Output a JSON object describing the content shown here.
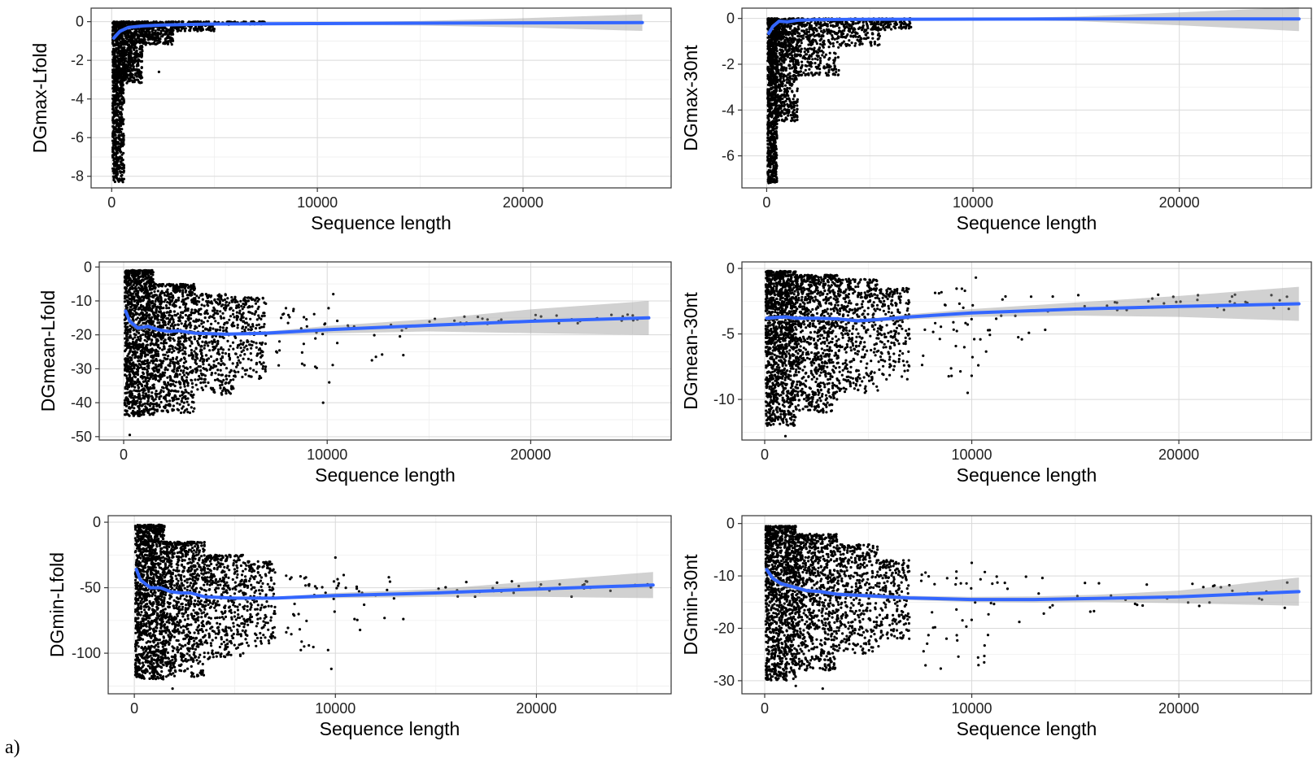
{
  "figure": {
    "panel_label": "a)"
  },
  "chart_data": [
    {
      "type": "scatter",
      "ylabel": "DGmax-Lfold",
      "xlabel": "Sequence length",
      "xlim": [
        -1000,
        27200
      ],
      "ylim": [
        -8.6,
        0.7
      ],
      "xticks": [
        0,
        10000,
        20000
      ],
      "xtick_labels": [
        "0",
        "10000",
        "20000"
      ],
      "yticks": [
        0,
        -2,
        -4,
        -6,
        -8
      ],
      "ytick_labels": [
        "0",
        "-2",
        "-4",
        "-6",
        "-8"
      ],
      "grid": true,
      "series": [
        {
          "kind": "points",
          "color": "#000000",
          "cloud": [
            {
              "x0": 50,
              "x1": 600,
              "top": 0.0,
              "bottom": -8.3,
              "n": 900
            },
            {
              "x0": 600,
              "x1": 1500,
              "top": 0.0,
              "bottom": -3.2,
              "n": 500
            },
            {
              "x0": 1500,
              "x1": 3000,
              "top": 0.0,
              "bottom": -1.2,
              "n": 300
            },
            {
              "x0": 3000,
              "x1": 5000,
              "top": 0.0,
              "bottom": -0.5,
              "n": 150
            },
            {
              "x0": 5000,
              "x1": 7500,
              "top": 0.0,
              "bottom": -0.15,
              "n": 60
            }
          ],
          "outliers": [
            [
              2300,
              -2.6
            ],
            [
              8800,
              -0.1
            ],
            [
              25800,
              -0.05
            ]
          ]
        },
        {
          "kind": "smooth",
          "color": "#3366ff",
          "x": [
            100,
            400,
            800,
            1500,
            2500,
            5000,
            10000,
            15000,
            20000,
            25800
          ],
          "y": [
            -0.85,
            -0.5,
            -0.3,
            -0.22,
            -0.17,
            -0.12,
            -0.1,
            -0.08,
            -0.06,
            -0.05
          ],
          "ci_low": [
            -1.0,
            -0.6,
            -0.35,
            -0.25,
            -0.2,
            -0.16,
            -0.15,
            -0.2,
            -0.3,
            -0.48
          ],
          "ci_high": [
            -0.7,
            -0.4,
            -0.25,
            -0.19,
            -0.14,
            -0.08,
            -0.05,
            0.04,
            0.18,
            0.38
          ]
        }
      ]
    },
    {
      "type": "scatter",
      "ylabel": "DGmax-30nt",
      "xlabel": "Sequence length",
      "xlim": [
        -1200,
        26400
      ],
      "ylim": [
        -7.4,
        0.45
      ],
      "xticks": [
        0,
        10000,
        20000
      ],
      "xtick_labels": [
        "0",
        "10000",
        "20000"
      ],
      "yticks": [
        0,
        -2,
        -4,
        -6
      ],
      "ytick_labels": [
        "0",
        "-2",
        "-4",
        "-6"
      ],
      "grid": true,
      "series": [
        {
          "kind": "points",
          "color": "#000000",
          "cloud": [
            {
              "x0": 50,
              "x1": 500,
              "top": 0.0,
              "bottom": -7.2,
              "n": 900
            },
            {
              "x0": 500,
              "x1": 1500,
              "top": 0.0,
              "bottom": -4.5,
              "n": 600
            },
            {
              "x0": 1500,
              "x1": 3500,
              "top": 0.0,
              "bottom": -2.5,
              "n": 400
            },
            {
              "x0": 3500,
              "x1": 5500,
              "top": 0.0,
              "bottom": -1.2,
              "n": 200
            },
            {
              "x0": 5500,
              "x1": 7000,
              "top": 0.0,
              "bottom": -0.5,
              "n": 80
            }
          ],
          "outliers": [
            [
              3100,
              -2.1
            ],
            [
              25800,
              -0.02
            ]
          ]
        },
        {
          "kind": "smooth",
          "color": "#3366ff",
          "x": [
            100,
            300,
            600,
            1000,
            1500,
            2500,
            5000,
            10000,
            15000,
            20000,
            25800
          ],
          "y": [
            -0.65,
            -0.35,
            -0.12,
            -0.15,
            -0.08,
            -0.05,
            -0.04,
            -0.03,
            -0.02,
            -0.02,
            -0.02
          ],
          "ci_low": [
            -0.8,
            -0.45,
            -0.2,
            -0.2,
            -0.12,
            -0.08,
            -0.07,
            -0.06,
            -0.12,
            -0.3,
            -0.55
          ],
          "ci_high": [
            -0.5,
            -0.25,
            -0.05,
            -0.1,
            -0.04,
            -0.02,
            -0.01,
            0.0,
            0.08,
            0.26,
            0.5
          ]
        }
      ]
    },
    {
      "type": "scatter",
      "ylabel": "DGmean-Lfold",
      "xlabel": "Sequence length",
      "xlim": [
        -1200,
        26900
      ],
      "ylim": [
        -51,
        1.5
      ],
      "xticks": [
        0,
        10000,
        20000
      ],
      "xtick_labels": [
        "0",
        "10000",
        "20000"
      ],
      "yticks": [
        0,
        -10,
        -20,
        -30,
        -40,
        -50
      ],
      "ytick_labels": [
        "0",
        "-10",
        "-20",
        "-30",
        "-40",
        "-50"
      ],
      "grid": true,
      "series": [
        {
          "kind": "points",
          "color": "#000000",
          "cloud": [
            {
              "x0": 50,
              "x1": 1500,
              "top": -1.0,
              "bottom": -44,
              "n": 1200
            },
            {
              "x0": 1500,
              "x1": 3500,
              "top": -5.0,
              "bottom": -43,
              "n": 800
            },
            {
              "x0": 3500,
              "x1": 5500,
              "top": -8.0,
              "bottom": -38,
              "n": 400
            },
            {
              "x0": 5500,
              "x1": 7000,
              "top": -9.0,
              "bottom": -33,
              "n": 200
            },
            {
              "x0": 7500,
              "x1": 10500,
              "top": -12.0,
              "bottom": -30,
              "n": 35
            },
            {
              "x0": 11000,
              "x1": 14000,
              "top": -13.0,
              "bottom": -29,
              "n": 12
            },
            {
              "x0": 15000,
              "x1": 25800,
              "top": -14.0,
              "bottom": -17,
              "n": 30
            }
          ],
          "outliers": [
            [
              300,
              -49.5
            ],
            [
              9800,
              -40
            ],
            [
              10300,
              -8
            ],
            [
              10100,
              -34
            ]
          ]
        },
        {
          "kind": "smooth",
          "color": "#3366ff",
          "x": [
            100,
            300,
            700,
            1200,
            1700,
            2200,
            2700,
            3500,
            5000,
            7000,
            10000,
            15000,
            20000,
            25800
          ],
          "y": [
            -13,
            -16,
            -18,
            -17.5,
            -18.5,
            -19,
            -18.8,
            -19.5,
            -19.8,
            -19.5,
            -18.5,
            -17.2,
            -16,
            -15
          ],
          "ci_low": [
            -14,
            -17,
            -18.8,
            -18.2,
            -19,
            -19.5,
            -19.3,
            -20,
            -20.3,
            -20,
            -19.6,
            -19,
            -19.5,
            -20
          ],
          "ci_high": [
            -12,
            -15,
            -17.2,
            -16.8,
            -18,
            -18.5,
            -18.3,
            -19,
            -19.3,
            -19,
            -17.4,
            -15.4,
            -12.5,
            -10
          ]
        }
      ]
    },
    {
      "type": "scatter",
      "ylabel": "DGmean-30nt",
      "xlabel": "Sequence length",
      "xlim": [
        -1100,
        26400
      ],
      "ylim": [
        -13.1,
        0.5
      ],
      "xticks": [
        0,
        10000,
        20000
      ],
      "xtick_labels": [
        "0",
        "10000",
        "20000"
      ],
      "yticks": [
        0,
        -5,
        -10
      ],
      "ytick_labels": [
        "0",
        "-5",
        "-10"
      ],
      "grid": true,
      "series": [
        {
          "kind": "points",
          "color": "#000000",
          "cloud": [
            {
              "x0": 50,
              "x1": 1500,
              "top": -0.2,
              "bottom": -12.0,
              "n": 1200
            },
            {
              "x0": 1500,
              "x1": 3500,
              "top": -0.5,
              "bottom": -11.0,
              "n": 800
            },
            {
              "x0": 3500,
              "x1": 5500,
              "top": -0.8,
              "bottom": -9.5,
              "n": 400
            },
            {
              "x0": 5500,
              "x1": 7000,
              "top": -1.5,
              "bottom": -8.5,
              "n": 200
            },
            {
              "x0": 7500,
              "x1": 11000,
              "top": -1.5,
              "bottom": -8.5,
              "n": 40
            },
            {
              "x0": 11000,
              "x1": 14000,
              "top": -2.0,
              "bottom": -6.5,
              "n": 12
            },
            {
              "x0": 15000,
              "x1": 25800,
              "top": -2.0,
              "bottom": -3.2,
              "n": 30
            }
          ],
          "outliers": [
            [
              1000,
              -12.8
            ],
            [
              10200,
              -0.7
            ],
            [
              9800,
              -9.5
            ]
          ]
        },
        {
          "kind": "smooth",
          "color": "#3366ff",
          "x": [
            100,
            500,
            1000,
            1500,
            2500,
            3500,
            4500,
            5500,
            7000,
            10000,
            15000,
            20000,
            25800
          ],
          "y": [
            -3.8,
            -3.75,
            -3.7,
            -3.8,
            -3.8,
            -3.85,
            -4.0,
            -3.9,
            -3.7,
            -3.4,
            -3.1,
            -2.9,
            -2.7
          ],
          "ci_low": [
            -4.0,
            -3.9,
            -3.85,
            -3.95,
            -3.95,
            -4.0,
            -4.15,
            -4.05,
            -3.9,
            -3.7,
            -3.6,
            -3.7,
            -4.0
          ],
          "ci_high": [
            -3.6,
            -3.6,
            -3.55,
            -3.65,
            -3.65,
            -3.7,
            -3.85,
            -3.75,
            -3.5,
            -3.1,
            -2.6,
            -2.1,
            -1.4
          ]
        }
      ]
    },
    {
      "type": "scatter",
      "ylabel": "DGmin-Lfold",
      "xlabel": "Sequence length",
      "xlim": [
        -1300,
        26700
      ],
      "ylim": [
        -131,
        5
      ],
      "xticks": [
        0,
        10000,
        20000
      ],
      "xtick_labels": [
        "0",
        "10000",
        "20000"
      ],
      "yticks": [
        0,
        -50,
        -100
      ],
      "ytick_labels": [
        "0",
        "-50",
        "-100"
      ],
      "grid": true,
      "series": [
        {
          "kind": "points",
          "color": "#000000",
          "cloud": [
            {
              "x0": 50,
              "x1": 1500,
              "top": -2,
              "bottom": -120,
              "n": 1200
            },
            {
              "x0": 1500,
              "x1": 3500,
              "top": -15,
              "bottom": -118,
              "n": 800
            },
            {
              "x0": 3500,
              "x1": 5500,
              "top": -25,
              "bottom": -105,
              "n": 400
            },
            {
              "x0": 5500,
              "x1": 7000,
              "top": -30,
              "bottom": -95,
              "n": 200
            },
            {
              "x0": 7500,
              "x1": 11000,
              "top": -40,
              "bottom": -100,
              "n": 40
            },
            {
              "x0": 11000,
              "x1": 14000,
              "top": -42,
              "bottom": -90,
              "n": 14
            },
            {
              "x0": 15000,
              "x1": 25800,
              "top": -45,
              "bottom": -57,
              "n": 30
            }
          ],
          "outliers": [
            [
              1900,
              -127
            ],
            [
              10000,
              -27
            ],
            [
              9800,
              -112
            ]
          ]
        },
        {
          "kind": "smooth",
          "color": "#3366ff",
          "x": [
            100,
            300,
            800,
            1300,
            1800,
            2300,
            2800,
            3500,
            5000,
            7000,
            10000,
            15000,
            20000,
            25800
          ],
          "y": [
            -36,
            -44,
            -50,
            -50,
            -53,
            -54,
            -54,
            -57,
            -58,
            -58,
            -56,
            -54,
            -51,
            -48
          ],
          "ci_low": [
            -38,
            -46,
            -51,
            -51,
            -54,
            -55,
            -55,
            -58,
            -59,
            -59,
            -58,
            -57,
            -57,
            -58
          ],
          "ci_high": [
            -34,
            -42,
            -49,
            -49,
            -52,
            -53,
            -53,
            -56,
            -57,
            -57,
            -54,
            -51,
            -45,
            -38
          ]
        }
      ]
    },
    {
      "type": "scatter",
      "ylabel": "DGmin-30nt",
      "xlabel": "Sequence length",
      "xlim": [
        -1100,
        26400
      ],
      "ylim": [
        -32.5,
        1.5
      ],
      "xticks": [
        0,
        10000,
        20000
      ],
      "xtick_labels": [
        "0",
        "10000",
        "20000"
      ],
      "yticks": [
        0,
        -10,
        -20,
        -30
      ],
      "ytick_labels": [
        "0",
        "-10",
        "-20",
        "-30"
      ],
      "grid": true,
      "series": [
        {
          "kind": "points",
          "color": "#000000",
          "cloud": [
            {
              "x0": 50,
              "x1": 1500,
              "top": -0.5,
              "bottom": -30,
              "n": 1200
            },
            {
              "x0": 1500,
              "x1": 3500,
              "top": -2.0,
              "bottom": -28,
              "n": 800
            },
            {
              "x0": 3500,
              "x1": 5500,
              "top": -4.0,
              "bottom": -25,
              "n": 400
            },
            {
              "x0": 5500,
              "x1": 7000,
              "top": -7.0,
              "bottom": -22,
              "n": 200
            },
            {
              "x0": 7500,
              "x1": 11000,
              "top": -9.0,
              "bottom": -28,
              "n": 40
            },
            {
              "x0": 11000,
              "x1": 14000,
              "top": -10.0,
              "bottom": -19,
              "n": 12
            },
            {
              "x0": 15000,
              "x1": 25800,
              "top": -11.0,
              "bottom": -17,
              "n": 30
            }
          ],
          "outliers": [
            [
              1500,
              -31
            ],
            [
              2800,
              -31.5
            ],
            [
              10000,
              -7.5
            ],
            [
              10600,
              -26.5
            ]
          ]
        },
        {
          "kind": "smooth",
          "color": "#3366ff",
          "x": [
            100,
            400,
            800,
            1300,
            2000,
            2700,
            3500,
            5000,
            7000,
            10000,
            13000,
            16000,
            20000,
            25800
          ],
          "y": [
            -8.8,
            -10.5,
            -11.5,
            -12.0,
            -12.8,
            -13.0,
            -13.5,
            -13.8,
            -14.2,
            -14.5,
            -14.5,
            -14.3,
            -14.0,
            -13.0
          ],
          "ci_low": [
            -9.5,
            -11.0,
            -12.0,
            -12.5,
            -13.2,
            -13.4,
            -13.9,
            -14.2,
            -14.6,
            -15.0,
            -15.1,
            -15.0,
            -15.2,
            -15.7
          ],
          "ci_high": [
            -8.1,
            -10.0,
            -11.0,
            -11.5,
            -12.4,
            -12.6,
            -13.1,
            -13.4,
            -13.8,
            -14.0,
            -13.9,
            -13.6,
            -12.8,
            -10.3
          ]
        }
      ]
    }
  ]
}
